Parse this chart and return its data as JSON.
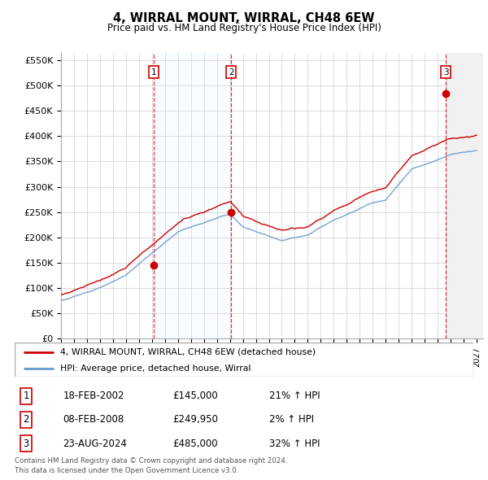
{
  "title": "4, WIRRAL MOUNT, WIRRAL, CH48 6EW",
  "subtitle": "Price paid vs. HM Land Registry's House Price Index (HPI)",
  "yticks": [
    0,
    50000,
    100000,
    150000,
    200000,
    250000,
    300000,
    350000,
    400000,
    450000,
    500000,
    550000
  ],
  "ytick_labels": [
    "£0",
    "£50K",
    "£100K",
    "£150K",
    "£200K",
    "£250K",
    "£300K",
    "£350K",
    "£400K",
    "£450K",
    "£500K",
    "£550K"
  ],
  "sale_years": [
    2002.12,
    2008.1,
    2024.64
  ],
  "sale_prices": [
    145000,
    249950,
    485000
  ],
  "sale_labels": [
    "1",
    "2",
    "3"
  ],
  "sale_pct": [
    "21% ↑ HPI",
    "2% ↑ HPI",
    "32% ↑ HPI"
  ],
  "sale_date_strs": [
    "18-FEB-2002",
    "08-FEB-2008",
    "23-AUG-2024"
  ],
  "sale_price_strs": [
    "£145,000",
    "£249,950",
    "£485,000"
  ],
  "hpi_line_color": "#6699cc",
  "price_line_color": "#cc0000",
  "shade_color": "#ddeeff",
  "legend_line1": "4, WIRRAL MOUNT, WIRRAL, CH48 6EW (detached house)",
  "legend_line2": "HPI: Average price, detached house, Wirral",
  "footer1": "Contains HM Land Registry data © Crown copyright and database right 2024.",
  "footer2": "This data is licensed under the Open Government Licence v3.0."
}
